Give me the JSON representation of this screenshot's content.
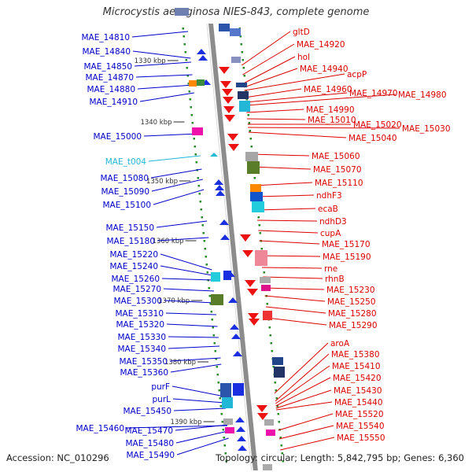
{
  "title": "Microcystis aeruginosa NIES-843, complete genome",
  "footer": {
    "accession": "Accession: NC_010296",
    "summary": "Topology: circular; Length: 5,842,795 bp; Genes: 6,360"
  },
  "colors": {
    "left_label": "#0000cc",
    "right_label": "#dd0000",
    "highlight_label": "#22b7d6",
    "backbone": "#8c8c8c",
    "tick": "#2a8a2a"
  },
  "kbp_marks": [
    "1330 kbp",
    "1340 kbp",
    "1350 kbp",
    "1360 kbp",
    "1370 kbp",
    "1380 kbp",
    "1390 kbp"
  ],
  "left_labels": [
    "MAE_14810",
    "MAE_14840",
    "MAE_14850",
    "MAE_14870",
    "MAE_14880",
    "MAE_14910",
    "MAE_15000",
    "MAE_t004",
    "MAE_15080",
    "MAE_15090",
    "MAE_15100",
    "MAE_15150",
    "MAE_15180",
    "MAE_15220",
    "MAE_15240",
    "MAE_15260",
    "MAE_15270",
    "MAE_15300",
    "MAE_15310",
    "MAE_15320",
    "MAE_15330",
    "MAE_15340",
    "MAE_15350",
    "MAE_15360",
    "purF",
    "purL",
    "MAE_15450",
    "MAE_15460",
    "MAE_15470",
    "MAE_15480",
    "MAE_15490"
  ],
  "right_labels": [
    "gltD",
    "MAE_14920",
    "hol",
    "MAE_14940",
    "acpP",
    "MAE_14960",
    "MAE_14970",
    "MAE_14980",
    "MAE_14990",
    "MAE_15010",
    "MAE_15020",
    "MAE_15030",
    "MAE_15040",
    "MAE_15060",
    "MAE_15070",
    "MAE_15110",
    "ndhF3",
    "ecaB",
    "ndhD3",
    "cupA",
    "MAE_15170",
    "MAE_15190",
    "rne",
    "rhnB",
    "MAE_15230",
    "MAE_15250",
    "MAE_15280",
    "MAE_15290",
    "aroA",
    "MAE_15380",
    "MAE_15410",
    "MAE_15420",
    "MAE_15430",
    "MAE_15440",
    "MAE_15520",
    "MAE_15540",
    "MAE_15550"
  ]
}
